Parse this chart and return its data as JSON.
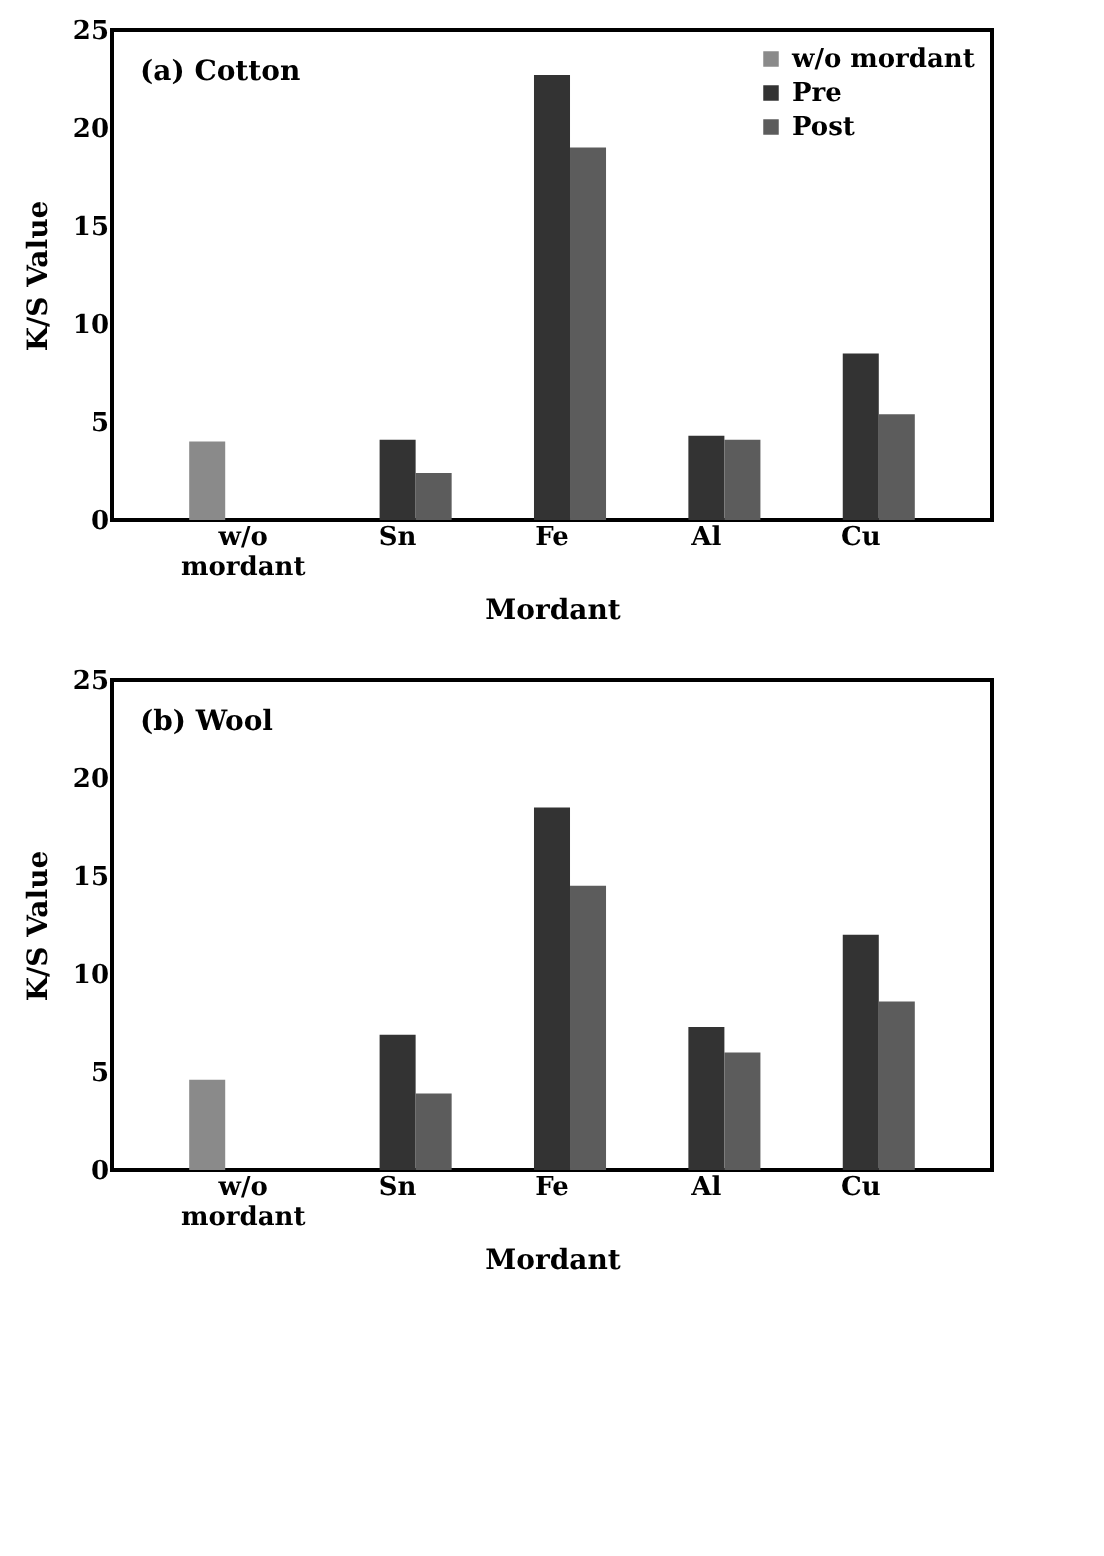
{
  "chart_data": [
    {
      "type": "bar",
      "title": "(a) Cotton",
      "xlabel": "Mordant",
      "ylabel": "K/S Value",
      "categories": [
        "w/o mordant",
        "Sn",
        "Fe",
        "Al",
        "Cu"
      ],
      "series": [
        {
          "name": "w/o mordant",
          "color": "#8a8a8a",
          "values": [
            4.0,
            null,
            null,
            null,
            null
          ]
        },
        {
          "name": "Pre",
          "color": "#333333",
          "values": [
            null,
            4.1,
            22.7,
            4.3,
            8.5
          ]
        },
        {
          "name": "Post",
          "color": "#5c5c5c",
          "values": [
            null,
            2.4,
            19.0,
            4.1,
            5.4
          ]
        }
      ],
      "ylim": [
        0,
        25
      ],
      "yticks": [
        0,
        5,
        10,
        15,
        20,
        25
      ],
      "grid": false,
      "legend": "top right"
    },
    {
      "type": "bar",
      "title": "(b) Wool",
      "xlabel": "Mordant",
      "ylabel": "K/S Value",
      "categories": [
        "w/o mordant",
        "Sn",
        "Fe",
        "Al",
        "Cu"
      ],
      "series": [
        {
          "name": "w/o mordant",
          "color": "#8a8a8a",
          "values": [
            4.6,
            null,
            null,
            null,
            null
          ]
        },
        {
          "name": "Pre",
          "color": "#333333",
          "values": [
            null,
            6.9,
            18.5,
            7.3,
            12.0
          ]
        },
        {
          "name": "Post",
          "color": "#5c5c5c",
          "values": [
            null,
            3.9,
            14.5,
            6.0,
            8.6
          ]
        }
      ],
      "ylim": [
        0,
        25
      ],
      "yticks": [
        0,
        5,
        10,
        15,
        20,
        25
      ],
      "grid": false,
      "legend": "top right"
    }
  ]
}
